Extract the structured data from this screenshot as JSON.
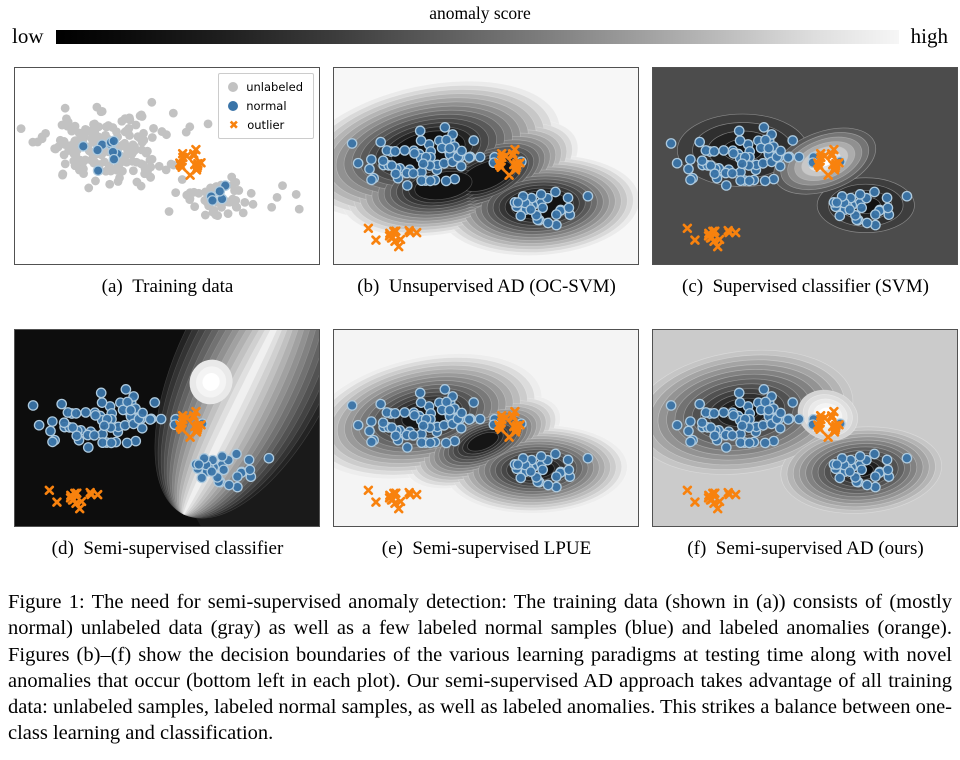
{
  "figure": {
    "colorbar": {
      "title": "anomaly score",
      "left_label": "low",
      "right_label": "high",
      "low_color": "#000000",
      "high_color": "#f6f6f6"
    },
    "legend": {
      "items": [
        {
          "label": "unlabeled",
          "marker": "circle",
          "color": "#c2c2c2"
        },
        {
          "label": "normal",
          "marker": "circle",
          "color": "#3a74a8"
        },
        {
          "label": "outlier",
          "marker": "x",
          "color": "#f8820e"
        }
      ]
    },
    "captions": {
      "a": "(a) Training data",
      "b": "(b) Unsupervised AD (OC-SVM)",
      "c": "(c) Supervised classifier (SVM)",
      "d": "(d) Semi-supervised classifier",
      "e": "(e) Semi-supervised LPUE",
      "f": "(f) Semi-supervised AD (ours)"
    },
    "main_caption": "Figure 1: The need for semi-supervised anomaly detection: The training data (shown in (a)) consists of (mostly normal) unlabeled data (gray) as well as a few labeled normal samples (blue) and labeled anomalies (orange). Figures (b)–(f) show the decision boundaries of the various learning paradigms at testing time along with novel anomalies that occur (bottom left in each plot). Our semi-supervised AD approach takes advantage of all training data: unlabeled samples, labeled normal samples, as well as labeled anomalies. This strikes a balance between one-class learning and classification."
  },
  "chart_data": {
    "type": "scatter",
    "style": {
      "gray": "#c2c2c2",
      "blue": "#3a74a8",
      "blue_edge": "#aecade",
      "orange": "#f8820e"
    },
    "groups": {
      "unlabeled_big": {
        "kind": "gray",
        "n": 185,
        "cx": 0.295,
        "cy": 0.415,
        "sx": 0.1,
        "sy": 0.088,
        "seed": 11
      },
      "unlabeled_small": {
        "kind": "gray",
        "n": 46,
        "cx": 0.675,
        "cy": 0.665,
        "sx": 0.054,
        "sy": 0.047,
        "seed": 22
      },
      "unlabeled_extra": {
        "kind": "gray",
        "pts": [
          [
            0.575,
            0.3
          ],
          [
            0.635,
            0.285
          ],
          [
            0.88,
            0.6
          ],
          [
            0.925,
            0.645
          ],
          [
            0.862,
            0.66
          ],
          [
            0.935,
            0.72
          ],
          [
            0.165,
            0.205
          ],
          [
            0.45,
            0.175
          ]
        ]
      },
      "train_normal_big": {
        "kind": "blue",
        "n": 10,
        "cx": 0.29,
        "cy": 0.435,
        "sx": 0.048,
        "sy": 0.04,
        "seed": 33
      },
      "train_normal_small": {
        "kind": "blue",
        "n": 5,
        "cx": 0.672,
        "cy": 0.655,
        "sx": 0.028,
        "sy": 0.026,
        "seed": 44
      },
      "outlier_train": {
        "kind": "orange",
        "n": 16,
        "cx": 0.565,
        "cy": 0.475,
        "sx": 0.026,
        "sy": 0.031,
        "seed": 55
      },
      "test_normal_big": {
        "kind": "blue",
        "n": 70,
        "cx": 0.3,
        "cy": 0.45,
        "sx": 0.092,
        "sy": 0.075,
        "seed": 66
      },
      "test_normal_small": {
        "kind": "blue",
        "n": 30,
        "cx": 0.675,
        "cy": 0.71,
        "sx": 0.056,
        "sy": 0.042,
        "seed": 77
      },
      "novel_cluster": {
        "kind": "orange",
        "n": 11,
        "cx": 0.208,
        "cy": 0.845,
        "sx": 0.02,
        "sy": 0.023,
        "seed": 88
      },
      "novel_strays": {
        "kind": "orange",
        "pts": [
          [
            0.113,
            0.818
          ],
          [
            0.138,
            0.878
          ],
          [
            0.272,
            0.84
          ]
        ]
      }
    },
    "panels": [
      {
        "id": "a",
        "bg": "#ffffff",
        "contours": [],
        "points": [
          "unlabeled_big",
          "unlabeled_small",
          "unlabeled_extra",
          "train_normal_big",
          "train_normal_small",
          "outlier_train"
        ]
      },
      {
        "id": "b",
        "bg": "#f7f7f7",
        "contours": [
          {
            "type": "blobset",
            "levels": 13,
            "from": "#ebebeb",
            "to": "#121212",
            "coreScale": 0.28,
            "stroke": "rgba(255,255,255,0.25)",
            "blobs": [
              {
                "cx": 0.31,
                "cy": 0.42,
                "rx": 0.44,
                "ry": 0.33,
                "rot": -12
              },
              {
                "cx": 0.5,
                "cy": 0.55,
                "rx": 0.32,
                "ry": 0.235,
                "rot": -22
              },
              {
                "cx": 0.675,
                "cy": 0.7,
                "rx": 0.33,
                "ry": 0.255,
                "rot": -4
              },
              {
                "cx": 0.36,
                "cy": 0.6,
                "rx": 0.34,
                "ry": 0.245,
                "rot": -10
              }
            ]
          }
        ],
        "points": [
          "test_normal_big",
          "test_normal_small",
          "outlier_train",
          "novel_cluster",
          "novel_strays"
        ]
      },
      {
        "id": "c",
        "bg": "#4c4c4c",
        "contours": [
          {
            "type": "blobset",
            "levels": 4,
            "from": "#3e3e3e",
            "to": "#121212",
            "coreScale": 0.3,
            "stroke": "rgba(190,190,190,0.55)",
            "blobs": [
              {
                "cx": 0.295,
                "cy": 0.42,
                "rx": 0.215,
                "ry": 0.185,
                "rot": 0
              },
              {
                "cx": 0.7,
                "cy": 0.7,
                "rx": 0.16,
                "ry": 0.14,
                "rot": 0
              }
            ]
          },
          {
            "type": "blobset",
            "levels": 7,
            "from": "#595959",
            "to": "#ffffff",
            "coreScale": 0.18,
            "stroke": "rgba(200,200,200,0.5)",
            "blobs": [
              {
                "cx": 0.565,
                "cy": 0.475,
                "rx": 0.175,
                "ry": 0.15,
                "rot": -20
              }
            ]
          }
        ],
        "points": [
          "test_normal_big",
          "test_normal_small",
          "outlier_train",
          "novel_cluster",
          "novel_strays"
        ]
      },
      {
        "id": "d",
        "bg": "#0d0d0d",
        "contours": [
          {
            "type": "blobset",
            "levels": 1,
            "from": "#1a1a1a",
            "to": "#1a1a1a",
            "coreScale": 1,
            "blobs": [
              {
                "cx": 0.97,
                "cy": 0.55,
                "rx": 0.42,
                "ry": 0.75,
                "rot": 18
              }
            ]
          },
          {
            "type": "funnel",
            "vertex": [
              0.555,
              0.94
            ],
            "angle": 26,
            "len": 0.85,
            "width": 0.52,
            "minLenFrac": 0.72,
            "coreScale": 0.05,
            "levels": 14,
            "from": "#232323",
            "to": "#f0f0f0"
          },
          {
            "type": "blobset",
            "levels": 3,
            "from": "#e9e9e9",
            "to": "#ffffff",
            "coreScale": 0.4,
            "blobs": [
              {
                "cx": 0.645,
                "cy": 0.265,
                "rx": 0.07,
                "ry": 0.115,
                "rot": 26
              }
            ]
          }
        ],
        "points": [
          "test_normal_big",
          "test_normal_small",
          "outlier_train",
          "novel_cluster",
          "novel_strays"
        ]
      },
      {
        "id": "e",
        "bg": "#f4f4f4",
        "contours": [
          {
            "type": "blobset",
            "levels": 14,
            "from": "#ededed",
            "to": "#151515",
            "coreScale": 0.2,
            "stroke": "rgba(255,255,255,0.25)",
            "blobs": [
              {
                "cx": 0.3,
                "cy": 0.44,
                "rx": 0.39,
                "ry": 0.3,
                "rot": -12
              },
              {
                "cx": 0.49,
                "cy": 0.57,
                "rx": 0.27,
                "ry": 0.195,
                "rot": -22
              },
              {
                "cx": 0.665,
                "cy": 0.71,
                "rx": 0.3,
                "ry": 0.225,
                "rot": -2
              }
            ]
          }
        ],
        "points": [
          "test_normal_big",
          "test_normal_small",
          "outlier_train",
          "novel_cluster",
          "novel_strays"
        ]
      },
      {
        "id": "f",
        "bg": "#cbcbcb",
        "contours": [
          {
            "type": "blobset",
            "levels": 12,
            "from": "#c5c5c5",
            "to": "#0e0e0e",
            "coreScale": 0.15,
            "stroke": "rgba(255,255,255,0.3)",
            "blobs": [
              {
                "cx": 0.295,
                "cy": 0.42,
                "rx": 0.365,
                "ry": 0.31,
                "rot": -8
              },
              {
                "cx": 0.685,
                "cy": 0.715,
                "rx": 0.265,
                "ry": 0.22,
                "rot": -4
              }
            ]
          },
          {
            "type": "blobset",
            "levels": 5,
            "from": "#d4d4d4",
            "to": "#ffffff",
            "coreScale": 0.3,
            "stroke": "rgba(255,255,255,0.35)",
            "blobs": [
              {
                "cx": 0.575,
                "cy": 0.435,
                "rx": 0.1,
                "ry": 0.125,
                "rot": 18
              }
            ]
          }
        ],
        "points": [
          "test_normal_big",
          "test_normal_small",
          "outlier_train",
          "novel_cluster",
          "novel_strays"
        ]
      }
    ]
  }
}
